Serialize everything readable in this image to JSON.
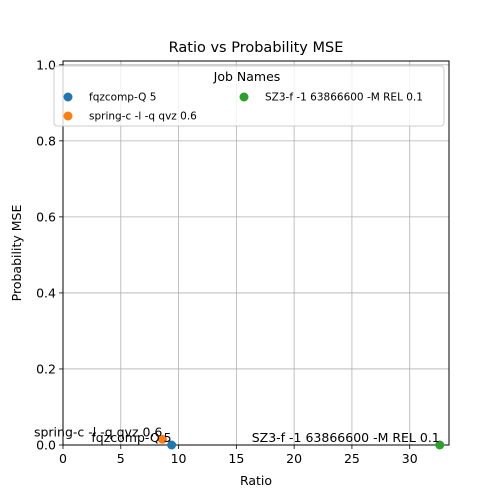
{
  "chart_data": {
    "type": "scatter",
    "title": "Ratio vs Probability MSE",
    "xlabel": "Ratio",
    "ylabel": "Probability MSE",
    "xlim": [
      0,
      33.4
    ],
    "ylim": [
      0,
      1.01
    ],
    "xticks": [
      0,
      5,
      10,
      15,
      20,
      25,
      30
    ],
    "yticks": [
      0.0,
      0.2,
      0.4,
      0.6,
      0.8,
      1.0
    ],
    "xtick_labels": [
      "0",
      "5",
      "10",
      "15",
      "20",
      "25",
      "30"
    ],
    "ytick_labels": [
      "0.0",
      "0.2",
      "0.4",
      "0.6",
      "0.8",
      "1.0"
    ],
    "grid": true,
    "legend": {
      "title": "Job Names",
      "placement": "top",
      "columns": 2
    },
    "series": [
      {
        "name": "fqzcomp-Q 5",
        "color": "#1f77b4",
        "x": 9.4,
        "y": 0.0,
        "annotation": "fqzcomp-Q 5"
      },
      {
        "name": "spring-c -l -q qvz 0.6",
        "color": "#ff7f0e",
        "x": 8.6,
        "y": 0.015,
        "annotation": "spring-c -l -q qvz 0.6"
      },
      {
        "name": "SZ3-f -1 63866600 -M REL 0.1",
        "color": "#2ca02c",
        "x": 32.6,
        "y": 0.0,
        "annotation": "SZ3-f -1 63866600 -M REL 0.1"
      }
    ]
  }
}
